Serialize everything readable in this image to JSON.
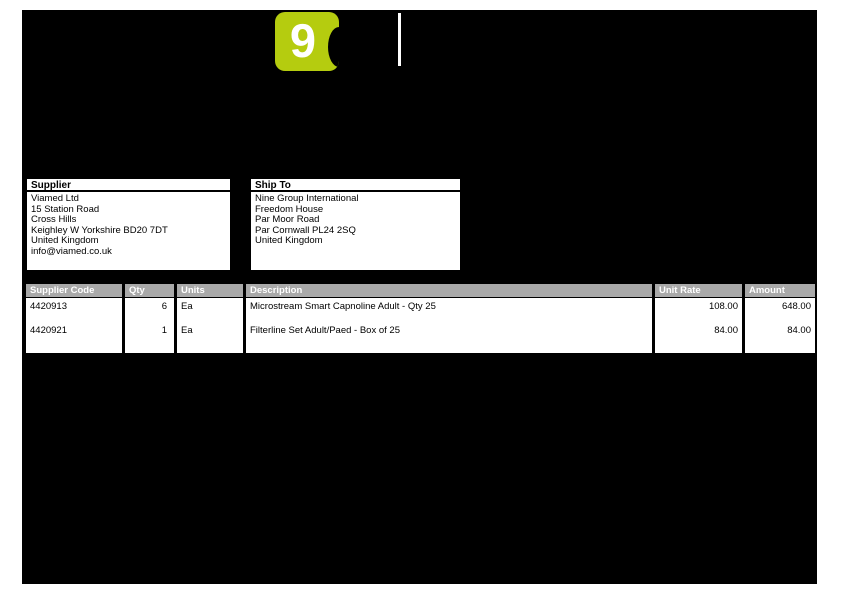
{
  "logo": {
    "number": "9",
    "color": "#b5cc0f"
  },
  "supplier_box": {
    "title": "Supplier",
    "lines": [
      "Viamed Ltd",
      "15 Station Road",
      "Cross Hills",
      "Keighley W Yorkshire BD20 7DT",
      "United Kingdom",
      "info@viamed.co.uk"
    ]
  },
  "ship_to_box": {
    "title": "Ship To",
    "lines": [
      "Nine Group International",
      "Freedom House",
      "Par Moor Road",
      "Par Cornwall PL24 2SQ",
      "United Kingdom"
    ]
  },
  "items_table": {
    "headers": [
      "Supplier Code",
      "Qty",
      "Units",
      "Description",
      "Unit Rate",
      "Amount"
    ],
    "rows": [
      {
        "supplier_code": "4420913",
        "qty": "6",
        "units": "Ea",
        "description": "Microstream Smart Capnoline Adult - Qty 25",
        "unit_rate": "108.00",
        "amount": "648.00"
      },
      {
        "supplier_code": "4420921",
        "qty": "1",
        "units": "Ea",
        "description": "Filterline Set Adult/Paed - Box of 25",
        "unit_rate": "84.00",
        "amount": "84.00"
      }
    ]
  },
  "colors": {
    "page_background": "#000000",
    "logo_green": "#b5cc0f",
    "table_header_gray": "#a9a9a9",
    "box_white": "#ffffff"
  }
}
